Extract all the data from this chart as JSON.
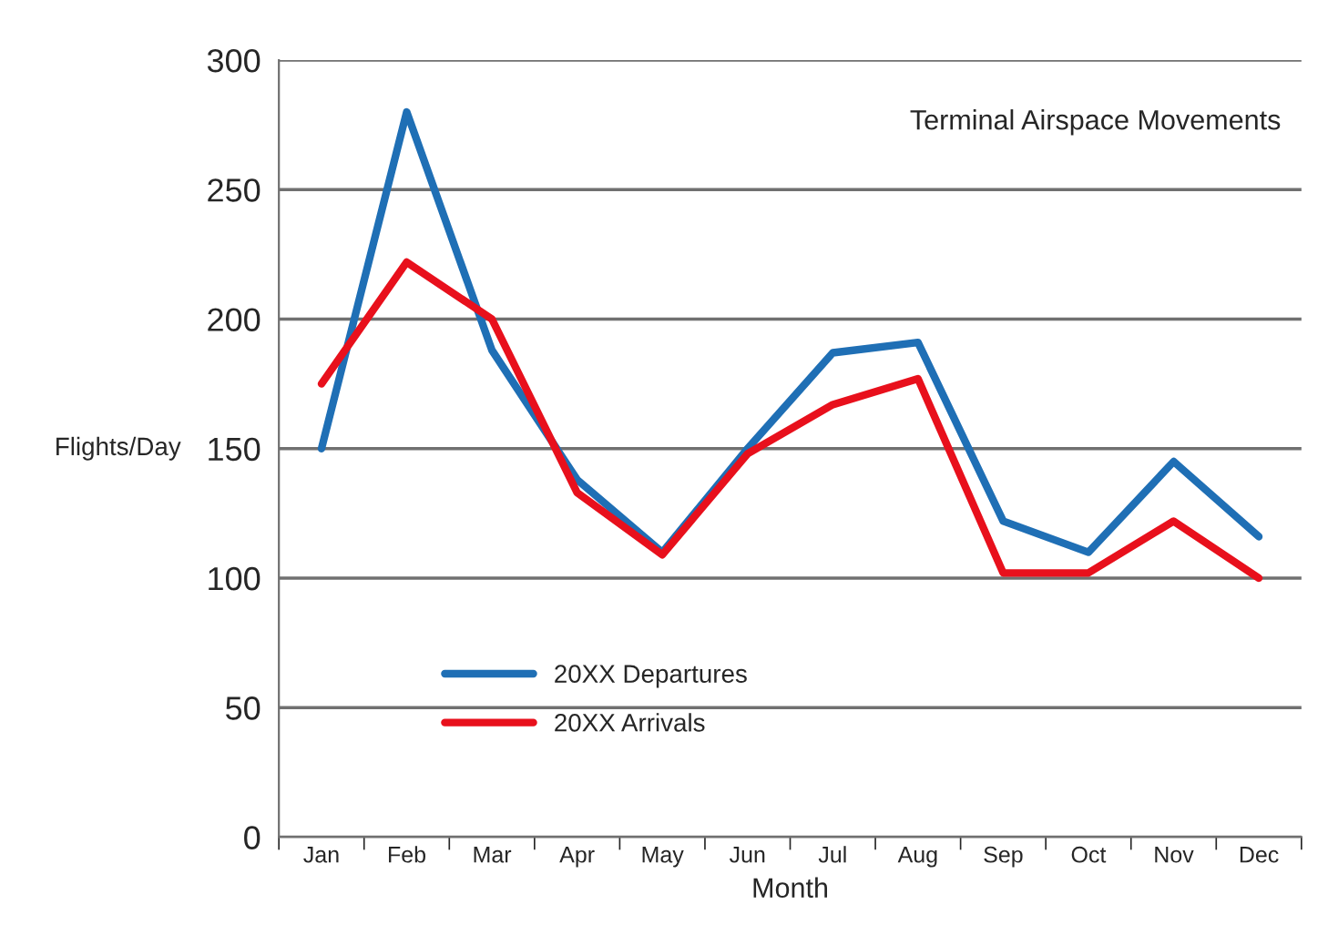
{
  "chart_data": {
    "type": "line",
    "title": "Terminal Airspace Movements",
    "xlabel": "Month",
    "ylabel": "Flights/Day",
    "categories": [
      "Jan",
      "Feb",
      "Mar",
      "Apr",
      "May",
      "Jun",
      "Jul",
      "Aug",
      "Sep",
      "Oct",
      "Nov",
      "Dec"
    ],
    "series": [
      {
        "name": "20XX Departures",
        "color": "#1f6fb5",
        "values": [
          150,
          280,
          188,
          138,
          110,
          150,
          187,
          191,
          122,
          110,
          145,
          116
        ]
      },
      {
        "name": "20XX Arrivals",
        "color": "#e8101c",
        "values": [
          175,
          222,
          200,
          133,
          109,
          148,
          167,
          177,
          102,
          102,
          122,
          100
        ]
      }
    ],
    "ylim": [
      0,
      300
    ],
    "yticks": [
      0,
      50,
      100,
      150,
      200,
      250,
      300
    ],
    "grid": "y",
    "legend": "bottom left",
    "marker": "none",
    "line_style": "solid"
  }
}
